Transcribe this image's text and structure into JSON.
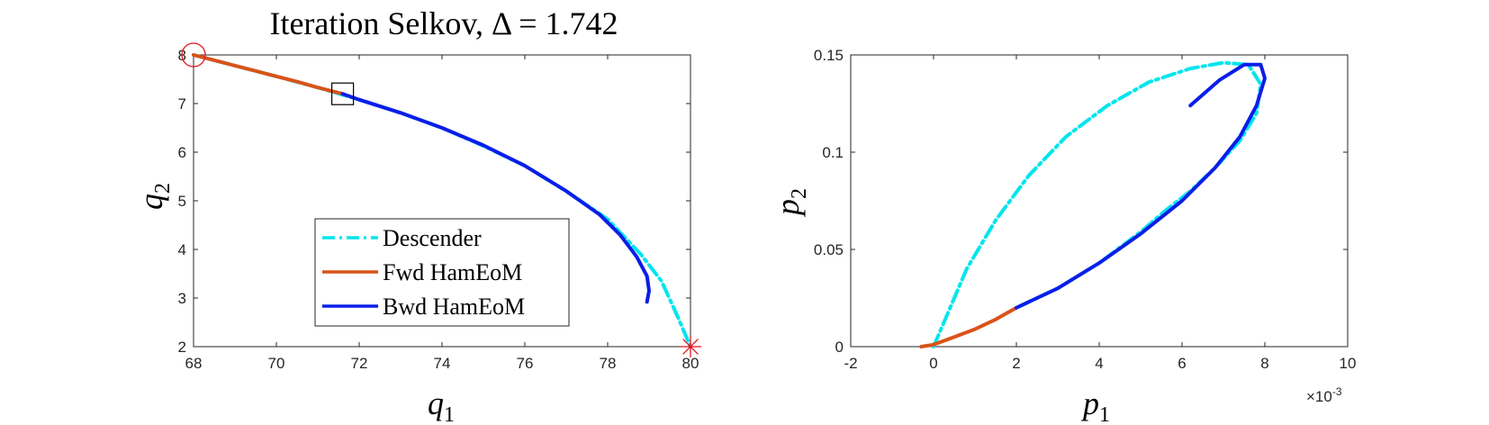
{
  "chart_data": [
    {
      "type": "line",
      "title": "Iteration Selkov, Δ = 1.742",
      "xlabel": "q",
      "xlabel_sub": "1",
      "ylabel": "q",
      "ylabel_sub": "2",
      "xlim": [
        68,
        80
      ],
      "ylim": [
        2,
        8
      ],
      "xticks": [
        68,
        70,
        72,
        74,
        76,
        78,
        80
      ],
      "yticks": [
        2,
        3,
        4,
        5,
        6,
        7,
        8
      ],
      "grid": false,
      "legend_position": "lower-center",
      "legend": [
        {
          "label": "Descender",
          "color": "#00e5ee",
          "style": "dashdot"
        },
        {
          "label": "Fwd HamEoM",
          "color": "#d95319",
          "style": "solid"
        },
        {
          "label": "Bwd HamEoM",
          "color": "#0a1ee8",
          "style": "solid"
        }
      ],
      "series": [
        {
          "name": "Descender",
          "color": "#00e5ee",
          "style": "dashdot",
          "x": [
            68.0,
            69.0,
            70.0,
            71.0,
            72.0,
            73.0,
            74.0,
            75.0,
            76.0,
            77.0,
            78.0,
            78.8,
            79.3,
            79.7,
            80.0
          ],
          "y": [
            8.0,
            7.78,
            7.56,
            7.33,
            7.08,
            6.81,
            6.5,
            6.13,
            5.72,
            5.2,
            4.62,
            3.9,
            3.35,
            2.6,
            2.0
          ]
        },
        {
          "name": "Fwd HamEoM",
          "color": "#d95319",
          "style": "solid",
          "x": [
            68.0,
            68.5,
            69.0,
            69.5,
            70.0,
            70.5,
            71.0,
            71.6
          ],
          "y": [
            8.0,
            7.89,
            7.78,
            7.67,
            7.56,
            7.45,
            7.33,
            7.2
          ]
        },
        {
          "name": "Bwd HamEoM",
          "color": "#0a1ee8",
          "style": "solid",
          "x": [
            71.6,
            72.0,
            73.0,
            74.0,
            75.0,
            76.0,
            77.0,
            77.8,
            78.3,
            78.7,
            78.95,
            79.0,
            78.95
          ],
          "y": [
            7.2,
            7.08,
            6.81,
            6.5,
            6.14,
            5.72,
            5.2,
            4.72,
            4.3,
            3.85,
            3.45,
            3.15,
            2.92
          ]
        }
      ],
      "markers": [
        {
          "kind": "circle",
          "color": "#e8131b",
          "x": 68.0,
          "y": 8.0
        },
        {
          "kind": "square",
          "color": "#000000",
          "x": 71.6,
          "y": 7.2
        },
        {
          "kind": "asterisk",
          "color": "#e8131b",
          "x": 80.0,
          "y": 2.0
        }
      ]
    },
    {
      "type": "line",
      "title": "",
      "xlabel": "p",
      "xlabel_sub": "1",
      "ylabel": "p",
      "ylabel_sub": "2",
      "xlim": [
        -2,
        10
      ],
      "ylim": [
        0,
        0.15
      ],
      "xticks": [
        -2,
        0,
        2,
        4,
        6,
        8,
        10
      ],
      "yticks": [
        0,
        0.05,
        0.1,
        0.15
      ],
      "xtick_labels": [
        "-2",
        "0",
        "2",
        "4",
        "6",
        "8",
        "10"
      ],
      "ytick_labels": [
        "0",
        "0.05",
        "0.1",
        "0.15"
      ],
      "x_exponent_base": "×10",
      "x_exponent_power": "-3",
      "grid": false,
      "series": [
        {
          "name": "Descender",
          "color": "#00e5ee",
          "style": "dashdot",
          "x": [
            0.0,
            0.3,
            0.8,
            1.5,
            2.3,
            3.2,
            4.2,
            5.2,
            6.2,
            7.0,
            7.6,
            7.9,
            7.8,
            7.4,
            6.8,
            6.2,
            5.6,
            5.0,
            4.0,
            3.0,
            2.0
          ],
          "y": [
            0.0,
            0.015,
            0.04,
            0.065,
            0.088,
            0.108,
            0.124,
            0.136,
            0.143,
            0.146,
            0.145,
            0.135,
            0.12,
            0.106,
            0.092,
            0.08,
            0.07,
            0.059,
            0.043,
            0.03,
            0.02
          ]
        },
        {
          "name": "Fwd HamEoM",
          "color": "#d95319",
          "style": "solid",
          "x": [
            -0.3,
            0.0,
            0.5,
            1.0,
            1.5,
            2.0
          ],
          "y": [
            0.0,
            0.001,
            0.005,
            0.009,
            0.014,
            0.02
          ]
        },
        {
          "name": "Bwd HamEoM",
          "color": "#0a1ee8",
          "style": "solid",
          "x": [
            2.0,
            3.0,
            4.0,
            5.0,
            6.0,
            6.8,
            7.4,
            7.8,
            8.0,
            7.9,
            7.5,
            6.9,
            6.2
          ],
          "y": [
            0.02,
            0.03,
            0.043,
            0.058,
            0.075,
            0.092,
            0.108,
            0.124,
            0.138,
            0.145,
            0.145,
            0.137,
            0.124
          ]
        }
      ]
    }
  ]
}
